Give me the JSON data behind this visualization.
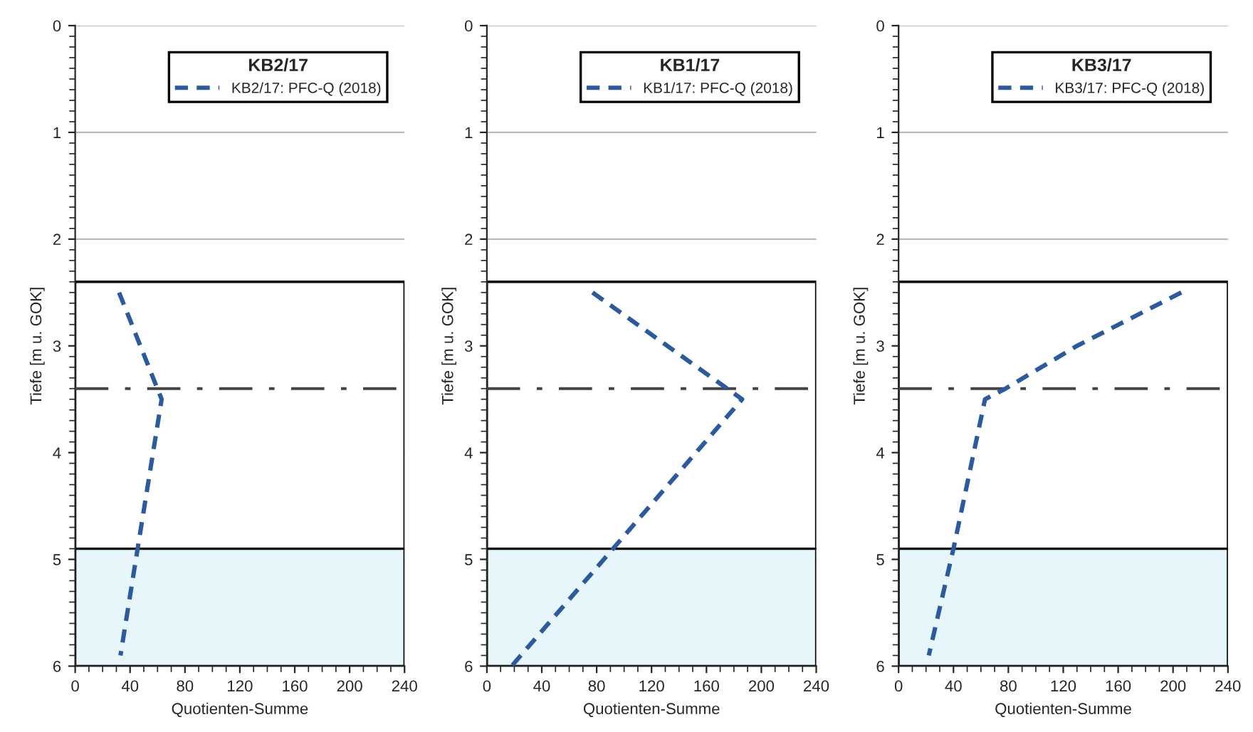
{
  "chart_data": [
    {
      "type": "line",
      "legend_title": "KB2/17",
      "xlabel": "Quotienten-Summe",
      "ylabel": "Tiefe [m u. GOK]",
      "xlim": [
        0,
        240
      ],
      "xticks": [
        0,
        40,
        80,
        120,
        160,
        200,
        240
      ],
      "ylim": [
        6,
        0
      ],
      "yticks": [
        0,
        1,
        2,
        3,
        4,
        5,
        6
      ],
      "grid": "y",
      "legend": "top right",
      "line_style": "dashed",
      "marker": "none",
      "series": [
        {
          "name": "KB2/17: PFC-Q (2018)",
          "color": "#2b5b9e",
          "x": [
            32,
            63,
            33
          ],
          "values": [
            2.5,
            3.5,
            5.9
          ]
        }
      ],
      "ref_lines": [
        {
          "axis": "y",
          "value": 3.4,
          "line_style": "dashdot",
          "color": "#444444"
        }
      ],
      "bands": [
        {
          "axis": "y",
          "from": 2.4,
          "to": 4.9,
          "color": "#ffffff"
        },
        {
          "axis": "y",
          "from": 4.9,
          "to": 6,
          "color": "#e6f6fa"
        }
      ]
    },
    {
      "type": "line",
      "legend_title": "KB1/17",
      "xlabel": "Quotienten-Summe",
      "ylabel": "Tiefe [m u. GOK]",
      "xlim": [
        0,
        240
      ],
      "xticks": [
        0,
        40,
        80,
        120,
        160,
        200,
        240
      ],
      "ylim": [
        6,
        0
      ],
      "yticks": [
        0,
        1,
        2,
        3,
        4,
        5,
        6
      ],
      "grid": "y",
      "legend": "top right",
      "line_style": "dashed",
      "marker": "none",
      "series": [
        {
          "name": "KB1/17: PFC-Q (2018)",
          "color": "#2b5b9e",
          "x": [
            77,
            186,
            18
          ],
          "values": [
            2.5,
            3.5,
            6.0
          ]
        }
      ],
      "ref_lines": [
        {
          "axis": "y",
          "value": 3.4,
          "line_style": "dashdot",
          "color": "#444444"
        }
      ],
      "bands": [
        {
          "axis": "y",
          "from": 2.4,
          "to": 4.9,
          "color": "#ffffff"
        },
        {
          "axis": "y",
          "from": 4.9,
          "to": 6,
          "color": "#e6f6fa"
        }
      ]
    },
    {
      "type": "line",
      "legend_title": "KB3/17",
      "xlabel": "Quotienten-Summe",
      "ylabel": "Tiefe [m u. GOK]",
      "xlim": [
        0,
        240
      ],
      "xticks": [
        0,
        40,
        80,
        120,
        160,
        200,
        240
      ],
      "ylim": [
        6,
        0
      ],
      "yticks": [
        0,
        1,
        2,
        3,
        4,
        5,
        6
      ],
      "grid": "y",
      "legend": "top right",
      "line_style": "dashed",
      "marker": "none",
      "series": [
        {
          "name": "KB3/17: PFC-Q (2018)",
          "color": "#2b5b9e",
          "x": [
            206,
            130,
            78,
            63,
            40,
            22
          ],
          "values": [
            2.5,
            3.0,
            3.4,
            3.5,
            4.9,
            5.9
          ]
        }
      ],
      "ref_lines": [
        {
          "axis": "y",
          "value": 3.4,
          "line_style": "dashdot",
          "color": "#444444"
        }
      ],
      "bands": [
        {
          "axis": "y",
          "from": 2.4,
          "to": 4.9,
          "color": "#ffffff"
        },
        {
          "axis": "y",
          "from": 4.9,
          "to": 6,
          "color": "#e6f6fa"
        }
      ]
    }
  ]
}
